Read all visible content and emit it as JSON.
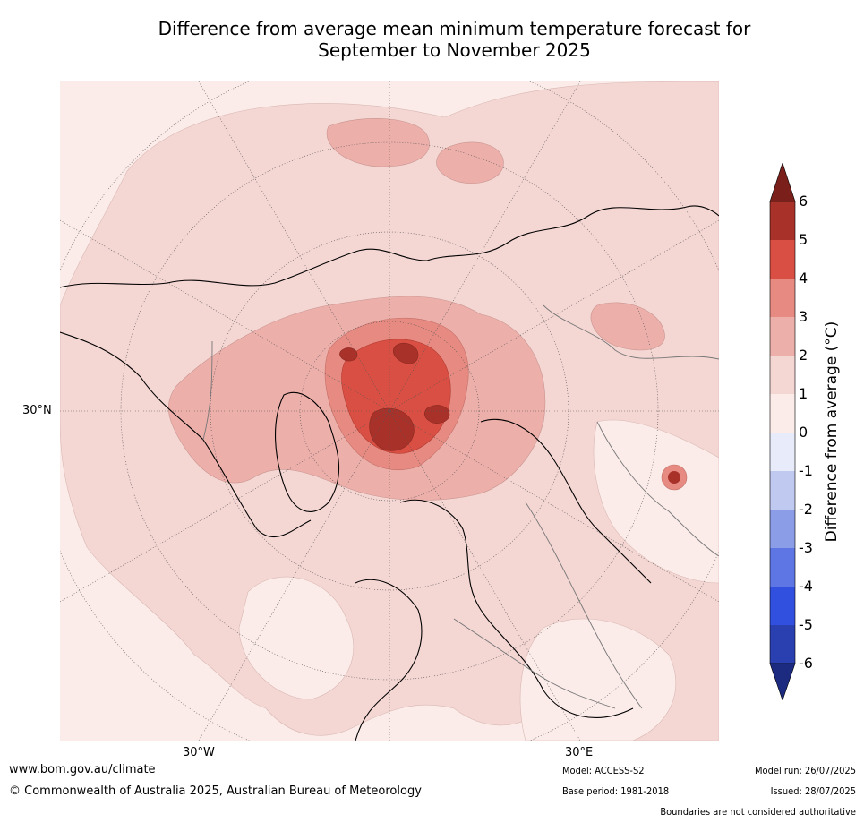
{
  "title_line1": "Difference from average mean minimum temperature forecast for",
  "title_line2": "September to November 2025",
  "map_labels": {
    "lat_30n": "30°N",
    "lon_30w": "30°W",
    "lon_30e": "30°E"
  },
  "colorbar": {
    "title": "Difference from average (°C)",
    "ticks": [
      "6",
      "5",
      "4",
      "3",
      "2",
      "1",
      "0",
      "-1",
      "-2",
      "-3",
      "-4",
      "-5",
      "-6"
    ],
    "colors": {
      "above_6": "#7a1f1a",
      "5_6": "#a8322a",
      "4_5": "#d94f43",
      "3_4": "#e68a82",
      "2_3": "#edafaa",
      "1_2": "#f4d6d3",
      "0_1": "#fbece9",
      "m1_0": "#e8ecfa",
      "m2_m1": "#c0c9f0",
      "m3_m2": "#8c9de8",
      "m4_m3": "#5e76e3",
      "m5_m4": "#3150e0",
      "m6_m5": "#2a3fb0",
      "below_m6": "#1c2a80"
    }
  },
  "footer": {
    "website": "www.bom.gov.au/climate",
    "copyright": "© Commonwealth of Australia 2025, Australian Bureau of Meteorology",
    "model": "Model: ACCESS-S2",
    "base_period": "Base period: 1981-2018",
    "model_run": "Model run: 26/07/2025",
    "issued": "Issued: 28/07/2025",
    "disclaimer": "Boundaries are not considered authoritative"
  }
}
